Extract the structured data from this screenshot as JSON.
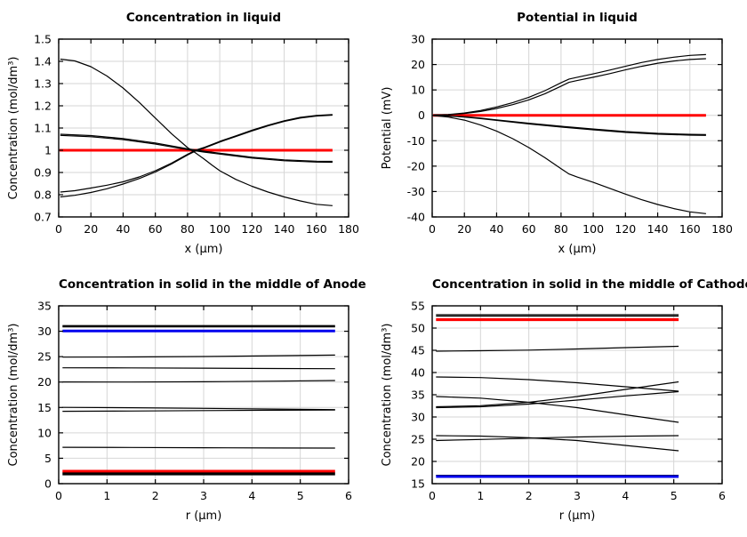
{
  "colors": {
    "curve_black": "#000000",
    "baseline_red": "#ff0000",
    "baseline_blue": "#0000ee",
    "grid": "#d6d6d6",
    "frame": "#000000"
  },
  "chart_data": [
    {
      "type": "line",
      "title": "Concentration in liquid",
      "xlabel": "x (μm)",
      "ylabel": "Concentration (mol/dm³)",
      "xlim": [
        0,
        180
      ],
      "ylim": [
        0.7,
        1.5
      ],
      "xticks": [
        0,
        20,
        40,
        60,
        80,
        100,
        120,
        140,
        160,
        180
      ],
      "yticks": [
        0.7,
        0.8,
        0.9,
        1,
        1.1,
        1.2,
        1.3,
        1.4,
        1.5
      ],
      "grid": true,
      "legend": "none",
      "series": [
        {
          "name": "reference-red",
          "color": "#ff0000",
          "width": 3,
          "x": [
            0.5,
            170
          ],
          "y": [
            1,
            1
          ]
        },
        {
          "name": "curve-steep-descending",
          "color": "#000000",
          "width": 1.2,
          "x": [
            1,
            10,
            20,
            30,
            40,
            50,
            60,
            70,
            80,
            85,
            90,
            95,
            100,
            110,
            120,
            130,
            140,
            150,
            160,
            170
          ],
          "y": [
            1.41,
            1.402,
            1.376,
            1.334,
            1.28,
            1.215,
            1.145,
            1.075,
            1.012,
            0.988,
            0.962,
            0.934,
            0.908,
            0.869,
            0.838,
            0.812,
            0.79,
            0.772,
            0.757,
            0.751
          ]
        },
        {
          "name": "curve-mid-descending-1",
          "color": "#000000",
          "width": 1.2,
          "x": [
            1,
            20,
            40,
            60,
            80,
            90,
            100,
            120,
            140,
            160,
            170
          ],
          "y": [
            1.072,
            1.066,
            1.053,
            1.033,
            1.007,
            0.996,
            0.987,
            0.969,
            0.957,
            0.951,
            0.95
          ]
        },
        {
          "name": "curve-mid-descending-2",
          "color": "#000000",
          "width": 1.2,
          "x": [
            1,
            20,
            40,
            60,
            80,
            90,
            100,
            120,
            140,
            160,
            170
          ],
          "y": [
            1.067,
            1.061,
            1.048,
            1.028,
            1.003,
            0.992,
            0.983,
            0.965,
            0.953,
            0.947,
            0.946
          ]
        },
        {
          "name": "curve-ascending-1",
          "color": "#000000",
          "width": 1.2,
          "x": [
            1,
            10,
            20,
            30,
            40,
            50,
            60,
            70,
            80,
            85,
            90,
            100,
            110,
            120,
            130,
            140,
            150,
            160,
            170
          ],
          "y": [
            0.812,
            0.818,
            0.83,
            0.843,
            0.858,
            0.88,
            0.908,
            0.942,
            0.982,
            1.0,
            1.012,
            1.04,
            1.065,
            1.09,
            1.113,
            1.133,
            1.148,
            1.157,
            1.161
          ]
        },
        {
          "name": "curve-ascending-2",
          "color": "#000000",
          "width": 1.2,
          "x": [
            1,
            10,
            20,
            30,
            40,
            50,
            60,
            70,
            80,
            85,
            90,
            100,
            110,
            120,
            130,
            140,
            150,
            160,
            170
          ],
          "y": [
            0.79,
            0.797,
            0.81,
            0.827,
            0.848,
            0.873,
            0.902,
            0.938,
            0.979,
            0.997,
            1.009,
            1.037,
            1.062,
            1.087,
            1.11,
            1.13,
            1.145,
            1.154,
            1.158
          ]
        }
      ]
    },
    {
      "type": "line",
      "title": "Potential in liquid",
      "xlabel": "x (μm)",
      "ylabel": "Potential (mV)",
      "xlim": [
        0,
        180
      ],
      "ylim": [
        -40,
        30
      ],
      "xticks": [
        0,
        20,
        40,
        60,
        80,
        100,
        120,
        140,
        160,
        180
      ],
      "yticks": [
        -40,
        -30,
        -20,
        -10,
        0,
        10,
        20,
        30
      ],
      "grid": true,
      "legend": "none",
      "series": [
        {
          "name": "reference-red",
          "color": "#ff0000",
          "width": 3,
          "x": [
            0.5,
            170
          ],
          "y": [
            0,
            0
          ]
        },
        {
          "name": "curve-ascending-upper",
          "color": "#000000",
          "width": 1.2,
          "x": [
            1,
            10,
            20,
            30,
            40,
            50,
            60,
            70,
            80,
            85,
            90,
            100,
            110,
            120,
            130,
            140,
            150,
            160,
            170
          ],
          "y": [
            0.1,
            0.3,
            0.9,
            1.9,
            3.3,
            5.0,
            7.1,
            9.7,
            12.8,
            14.3,
            15.0,
            16.3,
            17.8,
            19.3,
            20.8,
            22.0,
            22.9,
            23.6,
            23.9
          ]
        },
        {
          "name": "curve-ascending-lower",
          "color": "#000000",
          "width": 1.2,
          "x": [
            1,
            10,
            20,
            30,
            40,
            50,
            60,
            70,
            80,
            85,
            90,
            100,
            110,
            120,
            130,
            140,
            150,
            160,
            170
          ],
          "y": [
            0.1,
            0.25,
            0.7,
            1.5,
            2.7,
            4.2,
            6.1,
            8.5,
            11.5,
            13.0,
            13.7,
            15.0,
            16.4,
            17.9,
            19.3,
            20.5,
            21.4,
            22.0,
            22.3
          ]
        },
        {
          "name": "curve-shallow-descending-1",
          "color": "#000000",
          "width": 1.2,
          "x": [
            1,
            10,
            20,
            30,
            40,
            60,
            80,
            100,
            120,
            140,
            160,
            170
          ],
          "y": [
            -0.05,
            -0.2,
            -0.6,
            -1.1,
            -1.8,
            -3.1,
            -4.3,
            -5.4,
            -6.4,
            -7.1,
            -7.5,
            -7.6
          ]
        },
        {
          "name": "curve-shallow-descending-2",
          "color": "#000000",
          "width": 1.2,
          "x": [
            1,
            10,
            20,
            30,
            40,
            60,
            80,
            100,
            120,
            140,
            160,
            170
          ],
          "y": [
            -0.05,
            -0.25,
            -0.7,
            -1.3,
            -2.0,
            -3.4,
            -4.6,
            -5.7,
            -6.7,
            -7.4,
            -7.8,
            -7.9
          ]
        },
        {
          "name": "curve-steep-descending",
          "color": "#000000",
          "width": 1.2,
          "x": [
            1,
            10,
            20,
            30,
            40,
            50,
            60,
            70,
            80,
            85,
            90,
            100,
            110,
            120,
            130,
            140,
            150,
            160,
            170
          ],
          "y": [
            -0.1,
            -0.7,
            -1.9,
            -3.8,
            -6.2,
            -9.2,
            -12.7,
            -16.7,
            -21.0,
            -23.1,
            -24.3,
            -26.4,
            -28.7,
            -31.0,
            -33.2,
            -35.1,
            -36.7,
            -38.0,
            -38.7
          ]
        }
      ]
    },
    {
      "type": "line",
      "title": "Concentration in solid in the middle of Anode",
      "xlabel": "r (μm)",
      "ylabel": "Concentration (mol/dm³)",
      "xlim": [
        0,
        6
      ],
      "ylim": [
        0,
        35
      ],
      "xticks": [
        0,
        1,
        2,
        3,
        4,
        5,
        6
      ],
      "yticks": [
        0,
        5,
        10,
        15,
        20,
        25,
        30,
        35
      ],
      "grid": true,
      "legend": "none",
      "series": [
        {
          "name": "flat-black-31",
          "color": "#000000",
          "width": 2.6,
          "x": [
            0.08,
            5.72
          ],
          "y": [
            31.0,
            31.0
          ]
        },
        {
          "name": "reference-blue-30",
          "color": "#0000ee",
          "width": 3,
          "x": [
            0.08,
            5.72
          ],
          "y": [
            30.05,
            30.05
          ]
        },
        {
          "name": "curve-25",
          "color": "#000000",
          "width": 1.2,
          "x": [
            0.08,
            1.5,
            3,
            4.5,
            5.72
          ],
          "y": [
            24.9,
            24.93,
            25.03,
            25.18,
            25.3
          ]
        },
        {
          "name": "curve-22-8",
          "color": "#000000",
          "width": 1.2,
          "x": [
            0.08,
            1.5,
            3,
            4.5,
            5.72
          ],
          "y": [
            22.8,
            22.78,
            22.73,
            22.67,
            22.62
          ]
        },
        {
          "name": "curve-20",
          "color": "#000000",
          "width": 1.2,
          "x": [
            0.08,
            1.5,
            3,
            4.5,
            5.72
          ],
          "y": [
            20.02,
            20.0,
            20.06,
            20.18,
            20.3
          ]
        },
        {
          "name": "curve-15-upper",
          "color": "#000000",
          "width": 1.2,
          "x": [
            0.08,
            1.5,
            3,
            4.5,
            5.72
          ],
          "y": [
            15.02,
            14.95,
            14.82,
            14.68,
            14.58
          ]
        },
        {
          "name": "curve-14-lower",
          "color": "#000000",
          "width": 1.2,
          "x": [
            0.08,
            1.5,
            3,
            4.5,
            5.72
          ],
          "y": [
            14.25,
            14.3,
            14.38,
            14.45,
            14.5
          ]
        },
        {
          "name": "curve-7",
          "color": "#000000",
          "width": 1.2,
          "x": [
            0.08,
            1.5,
            3,
            4.5,
            5.72
          ],
          "y": [
            7.15,
            7.12,
            7.07,
            7.02,
            7.0
          ]
        },
        {
          "name": "reference-red-2-45",
          "color": "#ff0000",
          "width": 3,
          "x": [
            0.08,
            5.72
          ],
          "y": [
            2.45,
            2.45
          ]
        },
        {
          "name": "flat-black-2-12",
          "color": "#000000",
          "width": 1.1,
          "x": [
            0.08,
            5.72
          ],
          "y": [
            2.12,
            2.12
          ]
        },
        {
          "name": "flat-black-1-93",
          "color": "#000000",
          "width": 1.1,
          "x": [
            0.08,
            5.72
          ],
          "y": [
            1.93,
            1.93
          ]
        },
        {
          "name": "flat-black-1-74",
          "color": "#000000",
          "width": 1.1,
          "x": [
            0.08,
            5.72
          ],
          "y": [
            1.74,
            1.74
          ]
        }
      ]
    },
    {
      "type": "line",
      "title": "Concentration in solid in the middle of Cathode",
      "xlabel": "r (μm)",
      "ylabel": "Concentration (mol/dm³)",
      "xlim": [
        0,
        6
      ],
      "ylim": [
        15,
        55
      ],
      "xticks": [
        0,
        1,
        2,
        3,
        4,
        5,
        6
      ],
      "yticks": [
        15,
        20,
        25,
        30,
        35,
        40,
        45,
        50,
        55
      ],
      "grid": true,
      "legend": "none",
      "series": [
        {
          "name": "flat-black-53",
          "color": "#000000",
          "width": 1.2,
          "x": [
            0.08,
            5.1
          ],
          "y": [
            53.0,
            53.0
          ]
        },
        {
          "name": "flat-black-52-7",
          "color": "#000000",
          "width": 1.2,
          "x": [
            0.08,
            5.1
          ],
          "y": [
            52.7,
            52.7
          ]
        },
        {
          "name": "reference-red-51-9",
          "color": "#ff0000",
          "width": 3.2,
          "x": [
            0.08,
            5.1
          ],
          "y": [
            51.9,
            51.9
          ]
        },
        {
          "name": "curve-45",
          "color": "#000000",
          "width": 1.2,
          "x": [
            0.08,
            1,
            2,
            3,
            4,
            5.1
          ],
          "y": [
            44.8,
            44.9,
            45.05,
            45.3,
            45.6,
            45.9
          ]
        },
        {
          "name": "curve-39-descending",
          "color": "#000000",
          "width": 1.2,
          "x": [
            0.08,
            1,
            2,
            3,
            4,
            5.1
          ],
          "y": [
            39.0,
            38.85,
            38.4,
            37.7,
            36.8,
            35.8
          ]
        },
        {
          "name": "curve-34-descending",
          "color": "#000000",
          "width": 1.2,
          "x": [
            0.08,
            1,
            2,
            3,
            4,
            5.1
          ],
          "y": [
            34.6,
            34.25,
            33.3,
            32.1,
            30.5,
            28.8
          ]
        },
        {
          "name": "curve-32-ascending-steep",
          "color": "#000000",
          "width": 1.2,
          "x": [
            0.08,
            1,
            2,
            3,
            4,
            5.1
          ],
          "y": [
            32.3,
            32.55,
            33.3,
            34.6,
            36.2,
            37.9
          ]
        },
        {
          "name": "curve-32-ascending-shallow",
          "color": "#000000",
          "width": 1.2,
          "x": [
            0.08,
            1,
            2,
            3,
            4,
            5.1
          ],
          "y": [
            32.1,
            32.3,
            32.9,
            33.8,
            34.75,
            35.7
          ]
        },
        {
          "name": "curve-25-descending",
          "color": "#000000",
          "width": 1.2,
          "x": [
            0.08,
            1,
            2,
            3,
            4,
            5.1
          ],
          "y": [
            25.8,
            25.7,
            25.35,
            24.7,
            23.6,
            22.4
          ]
        },
        {
          "name": "curve-24-ascending",
          "color": "#000000",
          "width": 1.2,
          "x": [
            0.08,
            1,
            2,
            3,
            4,
            5.1
          ],
          "y": [
            24.7,
            24.95,
            25.25,
            25.5,
            25.68,
            25.8
          ]
        },
        {
          "name": "flat-black-16-9",
          "color": "#000000",
          "width": 1.1,
          "x": [
            0.08,
            5.1
          ],
          "y": [
            16.9,
            16.9
          ]
        },
        {
          "name": "reference-blue-16-6",
          "color": "#0000ee",
          "width": 3,
          "x": [
            0.08,
            5.1
          ],
          "y": [
            16.6,
            16.6
          ]
        }
      ]
    }
  ]
}
